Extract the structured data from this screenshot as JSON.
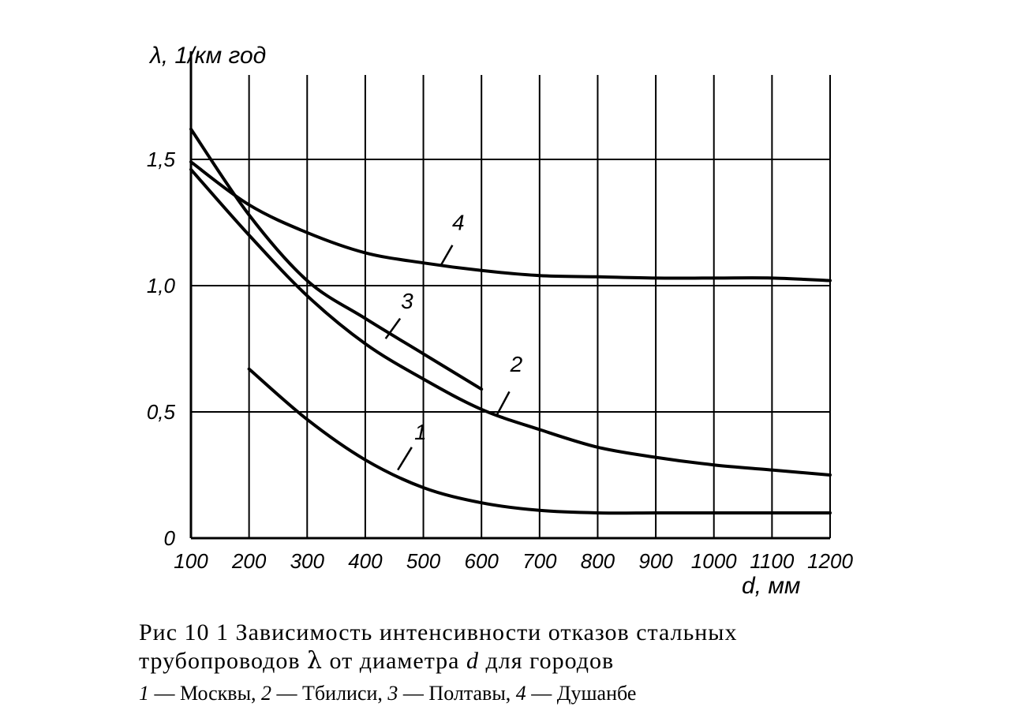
{
  "chart_data": {
    "type": "line",
    "ylabel": "λ, 1/км год",
    "xlabel": "d, мм",
    "xlim": [
      100,
      1200
    ],
    "ylim": [
      0,
      1.8
    ],
    "x_ticks": [
      100,
      200,
      300,
      400,
      500,
      600,
      700,
      800,
      900,
      1000,
      1100,
      1200
    ],
    "x_tick_labels": [
      "100",
      "200",
      "300",
      "400",
      "500",
      "600",
      "700",
      "800",
      "900",
      "1000",
      "1100",
      "1200"
    ],
    "y_ticks": [
      0,
      0.5,
      1.0,
      1.5
    ],
    "y_tick_labels": [
      "0",
      "0,5",
      "1,0",
      "1,5"
    ],
    "grid": true,
    "series": [
      {
        "name": "1",
        "x": [
          200,
          300,
          400,
          500,
          600,
          700,
          800,
          900,
          1000,
          1100,
          1200
        ],
        "y": [
          0.67,
          0.47,
          0.31,
          0.2,
          0.14,
          0.11,
          0.1,
          0.1,
          0.1,
          0.1,
          0.1
        ]
      },
      {
        "name": "2",
        "x": [
          100,
          200,
          300,
          400,
          500,
          600,
          700,
          800,
          900,
          1000,
          1100,
          1200
        ],
        "y": [
          1.46,
          1.2,
          0.96,
          0.77,
          0.63,
          0.51,
          0.43,
          0.36,
          0.32,
          0.29,
          0.27,
          0.25
        ]
      },
      {
        "name": "3",
        "x": [
          100,
          200,
          300,
          400,
          500,
          600
        ],
        "y": [
          1.62,
          1.28,
          1.02,
          0.87,
          0.73,
          0.59
        ]
      },
      {
        "name": "4",
        "x": [
          100,
          200,
          300,
          400,
          500,
          600,
          700,
          800,
          900,
          1000,
          1100,
          1200
        ],
        "y": [
          1.49,
          1.32,
          1.21,
          1.13,
          1.09,
          1.06,
          1.04,
          1.035,
          1.03,
          1.03,
          1.03,
          1.02
        ]
      }
    ],
    "curve_labels": [
      {
        "text": "1",
        "x": 495,
        "y": 0.39,
        "leader_from": [
          480,
          0.36
        ],
        "leader_to": [
          456,
          0.27
        ]
      },
      {
        "text": "2",
        "x": 660,
        "y": 0.66,
        "leader_from": [
          648,
          0.58
        ],
        "leader_to": [
          627,
          0.49
        ]
      },
      {
        "text": "3",
        "x": 472,
        "y": 0.91,
        "leader_from": [
          460,
          0.87
        ],
        "leader_to": [
          435,
          0.79
        ]
      },
      {
        "text": "4",
        "x": 560,
        "y": 1.22,
        "leader_from": [
          550,
          1.16
        ],
        "leader_to": [
          530,
          1.08
        ]
      }
    ]
  },
  "caption": {
    "line1": "Рис  10 1  Зависимость интенсивности отказов стальных",
    "line2_pre": "трубопроводов ",
    "lambda": "λ",
    "line2_mid": " от диаметра ",
    "d": "d",
    "line2_post": " для городов"
  },
  "legend": {
    "items": [
      {
        "num": "1",
        "text": " — Москвы,  "
      },
      {
        "num": "2",
        "text": " — Тбилиси,  "
      },
      {
        "num": "3",
        "text": " — Полтавы,  "
      },
      {
        "num": "4",
        "text": " — Душанбе"
      }
    ]
  }
}
